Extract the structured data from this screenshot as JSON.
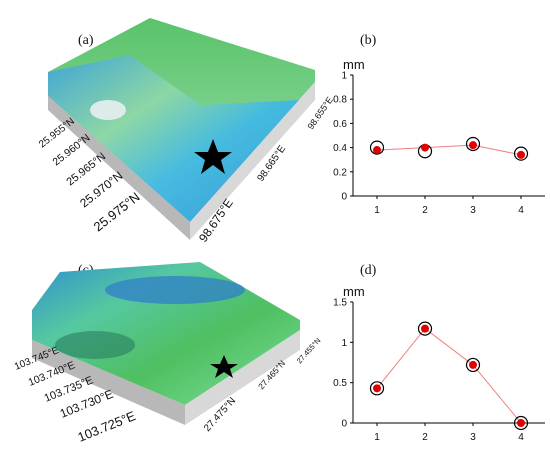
{
  "panels": {
    "a": "(a)",
    "b": "(b)",
    "c": "(c)",
    "d": "(d)"
  },
  "map_a": {
    "lat_labels": [
      "25.955°N",
      "25.960°N",
      "25.965°N",
      "25.970°N",
      "25.975°N"
    ],
    "lon_labels": [
      "98.675°E",
      "98.665°E",
      "98.655°E"
    ],
    "marker": "star-icon"
  },
  "map_c": {
    "lon_labels": [
      "103.745°E",
      "103.740°E",
      "103.735°E",
      "103.730°E",
      "103.725°E"
    ],
    "lat_labels": [
      "27.475°N",
      "27.465°N",
      "27.455°N"
    ],
    "marker": "star-icon"
  },
  "chart_data": [
    {
      "type": "scatter",
      "unit": "mm",
      "ylim": [
        0,
        1
      ],
      "yticks": [
        "0",
        "0.2",
        "0.4",
        "0.6",
        "0.8",
        "1"
      ],
      "yticks_values": [
        0,
        0.2,
        0.4,
        0.6,
        0.8,
        1
      ],
      "x": [
        1,
        2,
        3,
        4
      ],
      "xticks": [
        "1",
        "2",
        "3",
        "4"
      ],
      "series": [
        {
          "values": [
            0.38,
            0.4,
            0.42,
            0.34
          ],
          "color": "#e00000"
        },
        {
          "values": [
            0.4,
            0.37,
            0.43,
            0.35
          ],
          "color": "#000000"
        }
      ]
    },
    {
      "type": "scatter",
      "unit": "mm",
      "ylim": [
        0,
        1.5
      ],
      "yticks": [
        "0",
        "0.5",
        "1",
        "1.5"
      ],
      "yticks_values": [
        0,
        0.5,
        1,
        1.5
      ],
      "x": [
        1,
        2,
        3,
        4
      ],
      "xticks": [
        "1",
        "2",
        "3",
        "4"
      ],
      "series": [
        {
          "values": [
            0.43,
            1.17,
            0.72,
            0.0
          ],
          "color": "#e00000"
        },
        {
          "values": [
            0.43,
            1.17,
            0.72,
            0.0
          ],
          "color": "#000000"
        }
      ]
    }
  ]
}
